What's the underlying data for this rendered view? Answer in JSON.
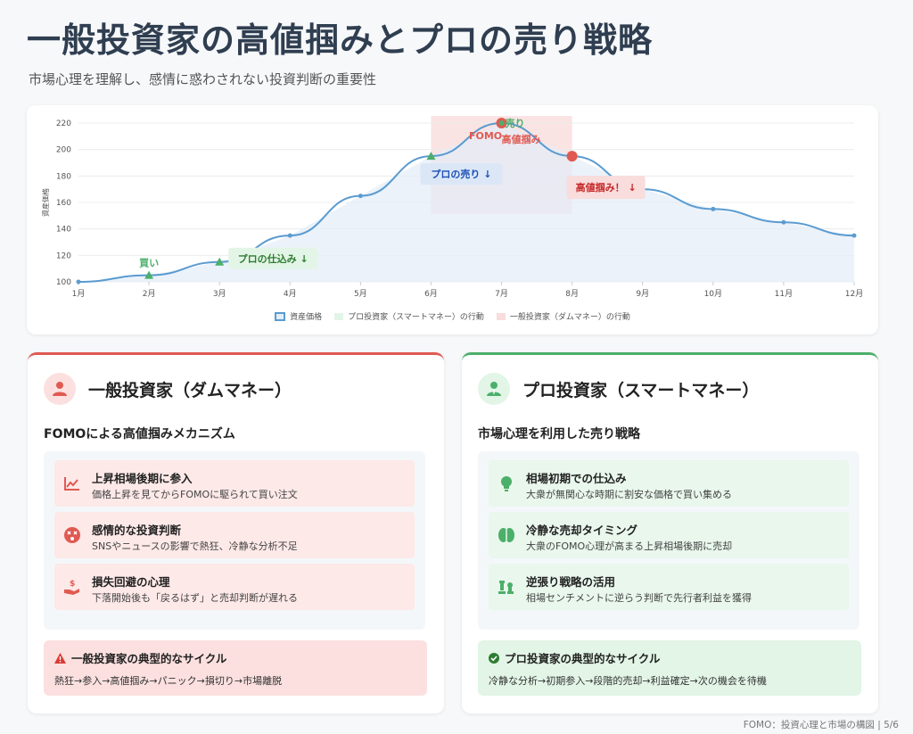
{
  "header": {
    "title": "一般投資家の高値掴みとプロの売り戦略",
    "subtitle": "市場心理を理解し、感情に惑わされない投資判断の重要性"
  },
  "chart_data": {
    "type": "line",
    "x": [
      "1月",
      "2月",
      "3月",
      "4月",
      "5月",
      "6月",
      "7月",
      "8月",
      "9月",
      "10月",
      "11月",
      "12月"
    ],
    "series": [
      {
        "name": "資産価格",
        "values": [
          100,
          105,
          115,
          135,
          165,
          195,
          220,
          195,
          170,
          155,
          145,
          135
        ]
      }
    ],
    "ylabel": "資産価格",
    "ylim": [
      100,
      220
    ],
    "yticks": [
      100,
      120,
      140,
      160,
      180,
      200,
      220
    ],
    "grid": true,
    "legend": [
      "資産価格",
      "プロ投資家（スマートマネー）の行動",
      "一般投資家（ダムマネー）の行動"
    ],
    "legend_position": "bottom",
    "annotations": [
      {
        "text": "買い",
        "x": "2月",
        "y": 105,
        "color": "#4caf6a"
      },
      {
        "text": "プロの仕込み ↓",
        "x": "3月",
        "y": 115,
        "color": "#2e7d32"
      },
      {
        "text": "売り",
        "x": "7月",
        "y": 220,
        "color": "#4caf6a"
      },
      {
        "text": "FOMO",
        "x": "7月",
        "y": 220,
        "color": "#e05a52"
      },
      {
        "text": "高値掴み",
        "x": "7月",
        "y": 220,
        "color": "#e05a52"
      },
      {
        "text": "プロの売り ↓",
        "x": "6月",
        "y": 195,
        "color": "#1e4fb5"
      },
      {
        "text": "高値掴み！ ↓",
        "x": "8月",
        "y": 195,
        "color": "#c62828"
      }
    ],
    "colors": {
      "line": "#5a9bd0",
      "fill": "#e3edf8",
      "pro": "#e3f5e6",
      "dumb": "#f9dcdc"
    }
  },
  "left_panel": {
    "title": "一般投資家（ダムマネー）",
    "subtitle": "FOMOによる高値掴みメカニズム",
    "avatar_icon": "user-icon",
    "items": [
      {
        "title": "上昇相場後期に参入",
        "desc": "価格上昇を見てからFOMOに駆られて買い注文",
        "icon": "chart-line-icon"
      },
      {
        "title": "感情的な投資判断",
        "desc": "SNSやニュースの影響で熱狂、冷静な分析不足",
        "icon": "dizzy-face-icon"
      },
      {
        "title": "損失回避の心理",
        "desc": "下落開始後も「戻るはず」と売却判断が遅れる",
        "icon": "hand-dollar-icon"
      }
    ],
    "cycle_title": "一般投資家の典型的なサイクル",
    "cycle_text": "熱狂→参入→高値掴み→パニック→損切り→市場離脱",
    "accent": "#e05a52"
  },
  "right_panel": {
    "title": "プロ投資家（スマートマネー）",
    "subtitle": "市場心理を利用した売り戦略",
    "avatar_icon": "user-tie-icon",
    "items": [
      {
        "title": "相場初期での仕込み",
        "desc": "大衆が無関心な時期に割安な価格で買い集める",
        "icon": "lightbulb-icon"
      },
      {
        "title": "冷静な売却タイミング",
        "desc": "大衆のFOMO心理が高まる上昇相場後期に売却",
        "icon": "brain-icon"
      },
      {
        "title": "逆張り戦略の活用",
        "desc": "相場センチメントに逆らう判断で先行者利益を獲得",
        "icon": "chess-icon"
      }
    ],
    "cycle_title": "プロ投資家の典型的なサイクル",
    "cycle_text": "冷静な分析→初期参入→段階的売却→利益確定→次の機会を待機",
    "accent": "#4caf6a"
  },
  "footer": {
    "text": "FOMO：投資心理と市場の構図 | 5/6"
  }
}
